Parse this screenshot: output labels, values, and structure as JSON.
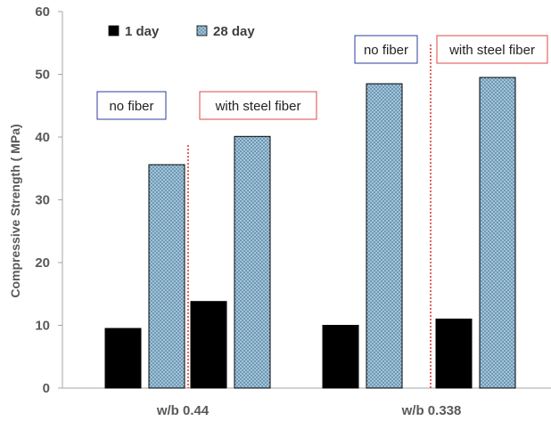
{
  "chart_data": {
    "type": "bar",
    "title": "",
    "xlabel": "",
    "ylabel": "Compressive Strength ( MPa)",
    "ylim": [
      0,
      60
    ],
    "yticks": [
      0,
      10,
      20,
      30,
      40,
      50,
      60
    ],
    "grid": false,
    "legend_position": "top-left",
    "groups": [
      {
        "label": "w/b 0.44",
        "subgroups": [
          {
            "label": "no fiber",
            "values": {
              "1 day": 9.5,
              "28 day": 35.6
            }
          },
          {
            "label": "with steel fiber",
            "values": {
              "1 day": 13.8,
              "28 day": 40.1
            }
          }
        ]
      },
      {
        "label": "w/b 0.338",
        "subgroups": [
          {
            "label": "no fiber",
            "values": {
              "1 day": 10.0,
              "28 day": 48.5
            }
          },
          {
            "label": "with steel fiber",
            "values": {
              "1 day": 11.0,
              "28 day": 49.5
            }
          }
        ]
      }
    ],
    "series": [
      {
        "name": "1 day",
        "color": "#000000",
        "pattern": "solid"
      },
      {
        "name": "28 day",
        "color": "#b4cfe0",
        "pattern": "crosshatch"
      }
    ],
    "note_colors": {
      "no fiber": "#2d3e9c",
      "with steel fiber": "#d94a4a"
    },
    "divider_color": "#e0302c"
  }
}
